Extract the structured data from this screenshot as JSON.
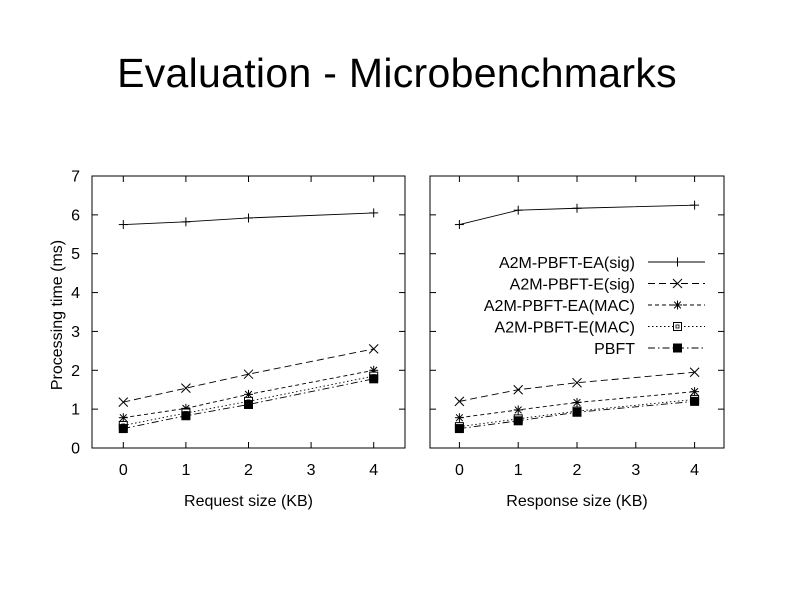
{
  "slide": {
    "title": "Evaluation - Microbenchmarks"
  },
  "chart_data": [
    {
      "type": "line",
      "title": "",
      "xlabel": "Request size (KB)",
      "ylabel": "Processing time (ms)",
      "xlim": [
        -0.5,
        4.5
      ],
      "ylim": [
        0,
        7
      ],
      "x_ticks": [
        0,
        1,
        2,
        3,
        4
      ],
      "y_ticks": [
        0,
        1,
        2,
        3,
        4,
        5,
        6,
        7
      ],
      "grid": false,
      "legend": "none",
      "x": [
        0,
        1,
        2,
        4
      ],
      "series": [
        {
          "name": "A2M-PBFT-EA(sig)",
          "marker": "plus",
          "dash": "solid",
          "values": [
            5.75,
            5.82,
            5.92,
            6.05
          ]
        },
        {
          "name": "A2M-PBFT-E(sig)",
          "marker": "cross",
          "dash": "dashed",
          "values": [
            1.18,
            1.54,
            1.9,
            2.55
          ]
        },
        {
          "name": "A2M-PBFT-EA(MAC)",
          "marker": "star",
          "dash": "short-dashed",
          "values": [
            0.78,
            1.02,
            1.38,
            2.0
          ]
        },
        {
          "name": "A2M-PBFT-E(MAC)",
          "marker": "open-square",
          "dash": "dotted",
          "values": [
            0.58,
            0.9,
            1.2,
            1.85
          ]
        },
        {
          "name": "PBFT",
          "marker": "filled-square",
          "dash": "dash-dot",
          "values": [
            0.5,
            0.83,
            1.12,
            1.78
          ]
        }
      ]
    },
    {
      "type": "line",
      "title": "",
      "xlabel": "Response size (KB)",
      "ylabel": "",
      "xlim": [
        -0.5,
        4.5
      ],
      "ylim": [
        0,
        7
      ],
      "x_ticks": [
        0,
        1,
        2,
        3,
        4
      ],
      "grid": false,
      "legend": "right-middle",
      "x": [
        0,
        1,
        2,
        4
      ],
      "series": [
        {
          "name": "A2M-PBFT-EA(sig)",
          "marker": "plus",
          "dash": "solid",
          "values": [
            5.75,
            6.12,
            6.17,
            6.25
          ]
        },
        {
          "name": "A2M-PBFT-E(sig)",
          "marker": "cross",
          "dash": "dashed",
          "values": [
            1.2,
            1.5,
            1.68,
            1.95
          ]
        },
        {
          "name": "A2M-PBFT-EA(MAC)",
          "marker": "star",
          "dash": "short-dashed",
          "values": [
            0.78,
            0.98,
            1.17,
            1.45
          ]
        },
        {
          "name": "A2M-PBFT-E(MAC)",
          "marker": "open-square",
          "dash": "dotted",
          "values": [
            0.55,
            0.75,
            0.95,
            1.25
          ]
        },
        {
          "name": "PBFT",
          "marker": "filled-square",
          "dash": "dash-dot",
          "values": [
            0.5,
            0.7,
            0.92,
            1.2
          ]
        }
      ]
    }
  ]
}
